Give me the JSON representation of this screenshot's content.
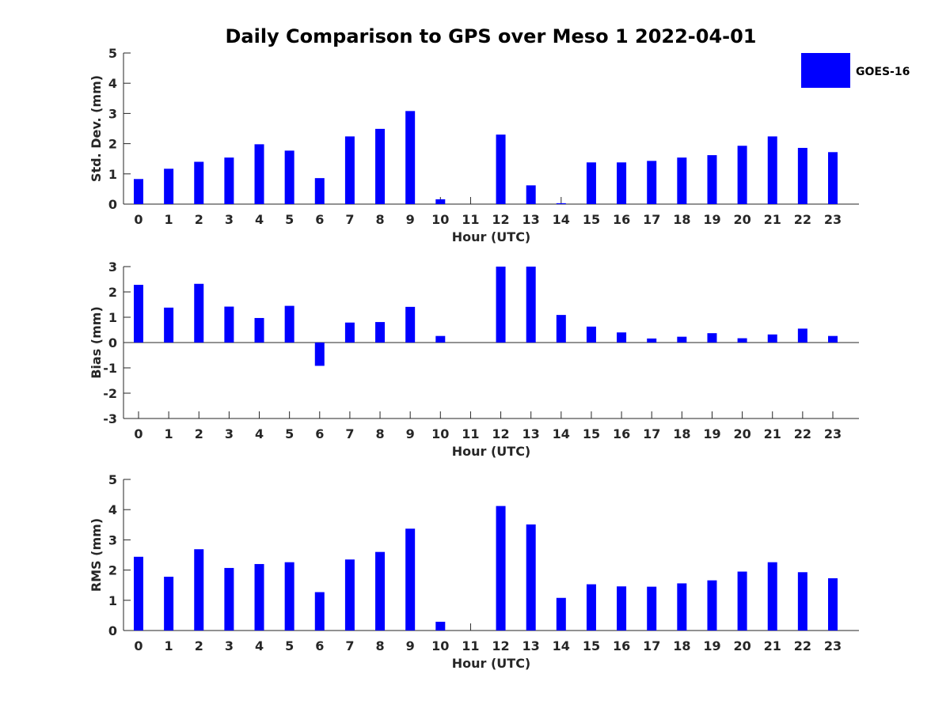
{
  "figure": {
    "title": "Daily Comparison to GPS over Meso 1 2022-04-01",
    "legend": {
      "label": "GOES-16",
      "color": "#0000ff",
      "position": "top-right"
    }
  },
  "chart_data": [
    {
      "type": "bar",
      "xlabel": "Hour (UTC)",
      "ylabel": "Std. Dev. (mm)",
      "categories": [
        "0",
        "1",
        "2",
        "3",
        "4",
        "5",
        "6",
        "7",
        "8",
        "9",
        "10",
        "11",
        "12",
        "13",
        "14",
        "15",
        "16",
        "17",
        "18",
        "19",
        "20",
        "21",
        "22",
        "23"
      ],
      "series": [
        {
          "name": "GOES-16",
          "color": "#0000ff",
          "values": [
            0.83,
            1.17,
            1.4,
            1.54,
            1.98,
            1.77,
            0.86,
            2.24,
            2.49,
            3.08,
            0.16,
            null,
            2.3,
            0.62,
            0.03,
            1.38,
            1.38,
            1.43,
            1.54,
            1.62,
            1.93,
            2.24,
            1.86,
            1.72
          ]
        }
      ],
      "ylim": [
        0,
        5
      ],
      "yticks": [
        0,
        1,
        2,
        3,
        4,
        5
      ],
      "grid": false
    },
    {
      "type": "bar",
      "xlabel": "Hour (UTC)",
      "ylabel": "Bias (mm)",
      "categories": [
        "0",
        "1",
        "2",
        "3",
        "4",
        "5",
        "6",
        "7",
        "8",
        "9",
        "10",
        "11",
        "12",
        "13",
        "14",
        "15",
        "16",
        "17",
        "18",
        "19",
        "20",
        "21",
        "22",
        "23"
      ],
      "series": [
        {
          "name": "GOES-16",
          "color": "#0000ff",
          "values": [
            2.28,
            1.38,
            2.32,
            1.42,
            0.97,
            1.45,
            -0.92,
            0.79,
            0.81,
            1.41,
            0.26,
            null,
            3.0,
            3.0,
            1.09,
            0.63,
            0.4,
            0.16,
            0.23,
            0.37,
            0.17,
            0.32,
            0.55,
            0.26
          ]
        }
      ],
      "ylim": [
        -3,
        3
      ],
      "yticks": [
        -3,
        -2,
        -1,
        0,
        1,
        2,
        3
      ],
      "grid": false
    },
    {
      "type": "bar",
      "xlabel": "Hour (UTC)",
      "ylabel": "RMS (mm)",
      "categories": [
        "0",
        "1",
        "2",
        "3",
        "4",
        "5",
        "6",
        "7",
        "8",
        "9",
        "10",
        "11",
        "12",
        "13",
        "14",
        "15",
        "16",
        "17",
        "18",
        "19",
        "20",
        "21",
        "22",
        "23"
      ],
      "series": [
        {
          "name": "GOES-16",
          "color": "#0000ff",
          "values": [
            2.44,
            1.78,
            2.69,
            2.07,
            2.2,
            2.26,
            1.27,
            2.35,
            2.6,
            3.37,
            0.29,
            null,
            4.12,
            3.51,
            1.08,
            1.53,
            1.46,
            1.45,
            1.56,
            1.66,
            1.95,
            2.26,
            1.93,
            1.73
          ]
        }
      ],
      "ylim": [
        0,
        5
      ],
      "yticks": [
        0,
        1,
        2,
        3,
        4,
        5
      ],
      "grid": false
    }
  ]
}
